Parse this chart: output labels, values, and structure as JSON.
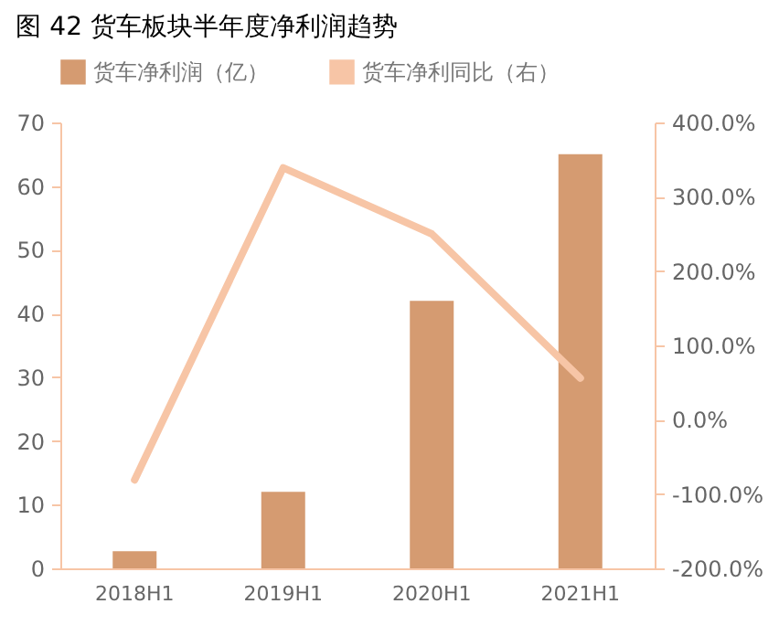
{
  "chart_data": {
    "type": "bar",
    "title": "图 42 货车板块半年度净利润趋势",
    "categories": [
      "2018H1",
      "2019H1",
      "2020H1",
      "2021H1"
    ],
    "series": [
      {
        "name": "货车净利润（亿）",
        "color": "#d59b71",
        "values": [
          2.7,
          12,
          42,
          65
        ]
      },
      {
        "name": "货车净利同比（右）",
        "type": "line",
        "axis": "y2",
        "color": "#f7c5a6",
        "values": [
          -81,
          339,
          250,
          56
        ]
      }
    ],
    "ylim": [
      0,
      70
    ],
    "yticks": [
      0,
      10,
      20,
      30,
      40,
      50,
      60,
      70
    ],
    "y2lim": [
      -200,
      400
    ],
    "y2ticks": [
      {
        "value": -200,
        "label": "-200.0%"
      },
      {
        "value": -100,
        "label": "-100.0%"
      },
      {
        "value": 0,
        "label": "0.0%"
      },
      {
        "value": 100,
        "label": "100.0%"
      },
      {
        "value": 200,
        "label": "200.0%"
      },
      {
        "value": 300,
        "label": "300.0%"
      },
      {
        "value": 400,
        "label": "400.0%"
      }
    ],
    "legend": "top",
    "grid": false,
    "marker": "none",
    "line_style": "solid"
  }
}
